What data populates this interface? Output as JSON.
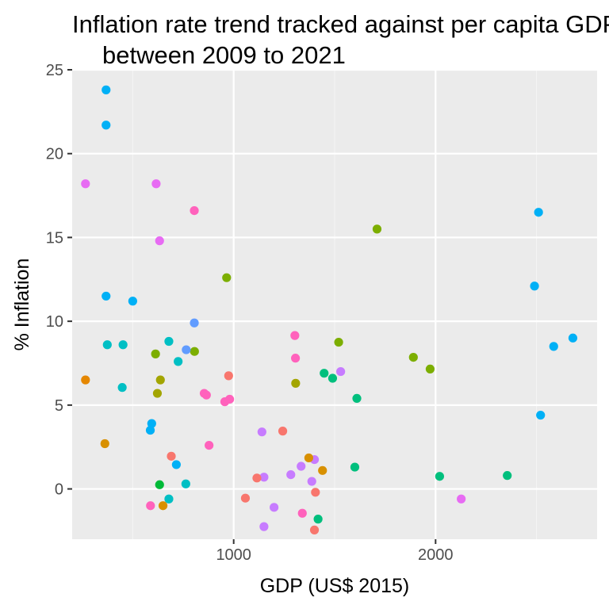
{
  "chart_data": {
    "type": "scatter",
    "title": [
      "Inflation rate trend tracked against per capita GDP",
      "between 2009 to 2021"
    ],
    "xlabel": "GDP (US$ 2015)",
    "ylabel": "% Inflation",
    "xlim": [
      200,
      2800
    ],
    "ylim": [
      -3,
      25
    ],
    "x_ticks": [
      1000,
      2000
    ],
    "y_ticks": [
      0,
      5,
      10,
      15,
      20,
      25
    ],
    "grid": true,
    "legend": "none",
    "points": [
      {
        "x": 368,
        "y": 23.8,
        "color": "#00B0F6"
      },
      {
        "x": 368,
        "y": 21.7,
        "color": "#00B0F6"
      },
      {
        "x": 368,
        "y": 11.5,
        "color": "#00B0F6"
      },
      {
        "x": 500,
        "y": 11.2,
        "color": "#00B0F6"
      },
      {
        "x": 587,
        "y": 3.5,
        "color": "#00B0F6"
      },
      {
        "x": 594,
        "y": 3.9,
        "color": "#00B0F6"
      },
      {
        "x": 2510,
        "y": 16.5,
        "color": "#00B0F6"
      },
      {
        "x": 2490,
        "y": 12.1,
        "color": "#00B0F6"
      },
      {
        "x": 2585,
        "y": 8.5,
        "color": "#00B0F6"
      },
      {
        "x": 2680,
        "y": 9.0,
        "color": "#00B0F6"
      },
      {
        "x": 2520,
        "y": 4.4,
        "color": "#00B0F6"
      },
      {
        "x": 716,
        "y": 1.45,
        "color": "#00B0F6"
      },
      {
        "x": 266,
        "y": 18.2,
        "color": "#E76BF3"
      },
      {
        "x": 616,
        "y": 18.2,
        "color": "#E76BF3"
      },
      {
        "x": 633,
        "y": 14.8,
        "color": "#E76BF3"
      },
      {
        "x": 2127,
        "y": -0.6,
        "color": "#E76BF3"
      },
      {
        "x": 805,
        "y": 16.6,
        "color": "#FF62BC"
      },
      {
        "x": 1303,
        "y": 9.15,
        "color": "#FF62BC"
      },
      {
        "x": 1306,
        "y": 7.8,
        "color": "#FF62BC"
      },
      {
        "x": 865,
        "y": 5.6,
        "color": "#FF62BC"
      },
      {
        "x": 854,
        "y": 5.7,
        "color": "#FF62BC"
      },
      {
        "x": 956,
        "y": 5.2,
        "color": "#FF62BC"
      },
      {
        "x": 980,
        "y": 5.35,
        "color": "#FF62BC"
      },
      {
        "x": 878,
        "y": 2.6,
        "color": "#FF62BC"
      },
      {
        "x": 588,
        "y": -1.0,
        "color": "#FF62BC"
      },
      {
        "x": 1340,
        "y": -1.45,
        "color": "#FF62BC"
      },
      {
        "x": 1710,
        "y": 15.5,
        "color": "#7CAE00"
      },
      {
        "x": 965,
        "y": 12.6,
        "color": "#7CAE00"
      },
      {
        "x": 1520,
        "y": 8.75,
        "color": "#7CAE00"
      },
      {
        "x": 1890,
        "y": 7.85,
        "color": "#7CAE00"
      },
      {
        "x": 1973,
        "y": 7.15,
        "color": "#7CAE00"
      },
      {
        "x": 613,
        "y": 8.05,
        "color": "#7CAE00"
      },
      {
        "x": 806,
        "y": 8.2,
        "color": "#7CAE00"
      },
      {
        "x": 633,
        "y": 0.25,
        "color": "#00BA38"
      },
      {
        "x": 1448,
        "y": 6.9,
        "color": "#00BF7D"
      },
      {
        "x": 1490,
        "y": 6.6,
        "color": "#00BF7D"
      },
      {
        "x": 1610,
        "y": 5.4,
        "color": "#00BF7D"
      },
      {
        "x": 1600,
        "y": 1.3,
        "color": "#00BF7D"
      },
      {
        "x": 2020,
        "y": 0.75,
        "color": "#00BF7D"
      },
      {
        "x": 2355,
        "y": 0.8,
        "color": "#00BF7D"
      },
      {
        "x": 1418,
        "y": -1.8,
        "color": "#00BF7D"
      },
      {
        "x": 679,
        "y": 8.8,
        "color": "#00BFC4"
      },
      {
        "x": 374,
        "y": 8.6,
        "color": "#00BFC4"
      },
      {
        "x": 452,
        "y": 8.6,
        "color": "#00BFC4"
      },
      {
        "x": 725,
        "y": 7.6,
        "color": "#00BFC4"
      },
      {
        "x": 448,
        "y": 6.05,
        "color": "#00BFC4"
      },
      {
        "x": 763,
        "y": 0.3,
        "color": "#00BFC4"
      },
      {
        "x": 679,
        "y": -0.6,
        "color": "#00BFC4"
      },
      {
        "x": 805,
        "y": 9.9,
        "color": "#619CFF"
      },
      {
        "x": 765,
        "y": 8.3,
        "color": "#619CFF"
      },
      {
        "x": 1530,
        "y": 7.0,
        "color": "#C77CFF"
      },
      {
        "x": 1140,
        "y": 3.4,
        "color": "#C77CFF"
      },
      {
        "x": 1334,
        "y": 1.35,
        "color": "#C77CFF"
      },
      {
        "x": 1400,
        "y": 1.75,
        "color": "#C77CFF"
      },
      {
        "x": 1283,
        "y": 0.85,
        "color": "#C77CFF"
      },
      {
        "x": 1150,
        "y": 0.7,
        "color": "#C77CFF"
      },
      {
        "x": 1387,
        "y": 0.45,
        "color": "#C77CFF"
      },
      {
        "x": 1200,
        "y": -1.1,
        "color": "#C77CFF"
      },
      {
        "x": 1150,
        "y": -2.25,
        "color": "#C77CFF"
      },
      {
        "x": 622,
        "y": 5.7,
        "color": "#A3A500"
      },
      {
        "x": 637,
        "y": 6.5,
        "color": "#A3A500"
      },
      {
        "x": 1307,
        "y": 6.3,
        "color": "#A3A500"
      },
      {
        "x": 266,
        "y": 6.5,
        "color": "#E58700"
      },
      {
        "x": 362,
        "y": 2.7,
        "color": "#D89000"
      },
      {
        "x": 1372,
        "y": 1.85,
        "color": "#D89000"
      },
      {
        "x": 1440,
        "y": 1.1,
        "color": "#D89000"
      },
      {
        "x": 650,
        "y": -1.0,
        "color": "#D89000"
      },
      {
        "x": 691,
        "y": 1.95,
        "color": "#F8766D"
      },
      {
        "x": 975,
        "y": 6.75,
        "color": "#F8766D"
      },
      {
        "x": 1243,
        "y": 3.45,
        "color": "#F8766D"
      },
      {
        "x": 1115,
        "y": 0.65,
        "color": "#F8766D"
      },
      {
        "x": 1058,
        "y": -0.55,
        "color": "#F8766D"
      },
      {
        "x": 1405,
        "y": -0.2,
        "color": "#F8766D"
      },
      {
        "x": 1400,
        "y": -2.45,
        "color": "#F8766D"
      }
    ]
  },
  "colors": {
    "panel_background": "#EBEBEB",
    "grid_major": "#FFFFFF",
    "grid_minor": "#F5F5F5",
    "tick_text": "#4D4D4D"
  }
}
